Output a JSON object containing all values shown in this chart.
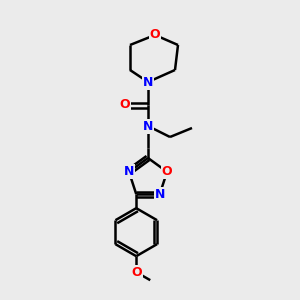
{
  "bg_color": "#ebebeb",
  "atom_colors": {
    "N": "#0000FF",
    "O": "#FF0000",
    "bond": "#000000"
  },
  "figsize": [
    3.0,
    3.0
  ],
  "dpi": 100
}
